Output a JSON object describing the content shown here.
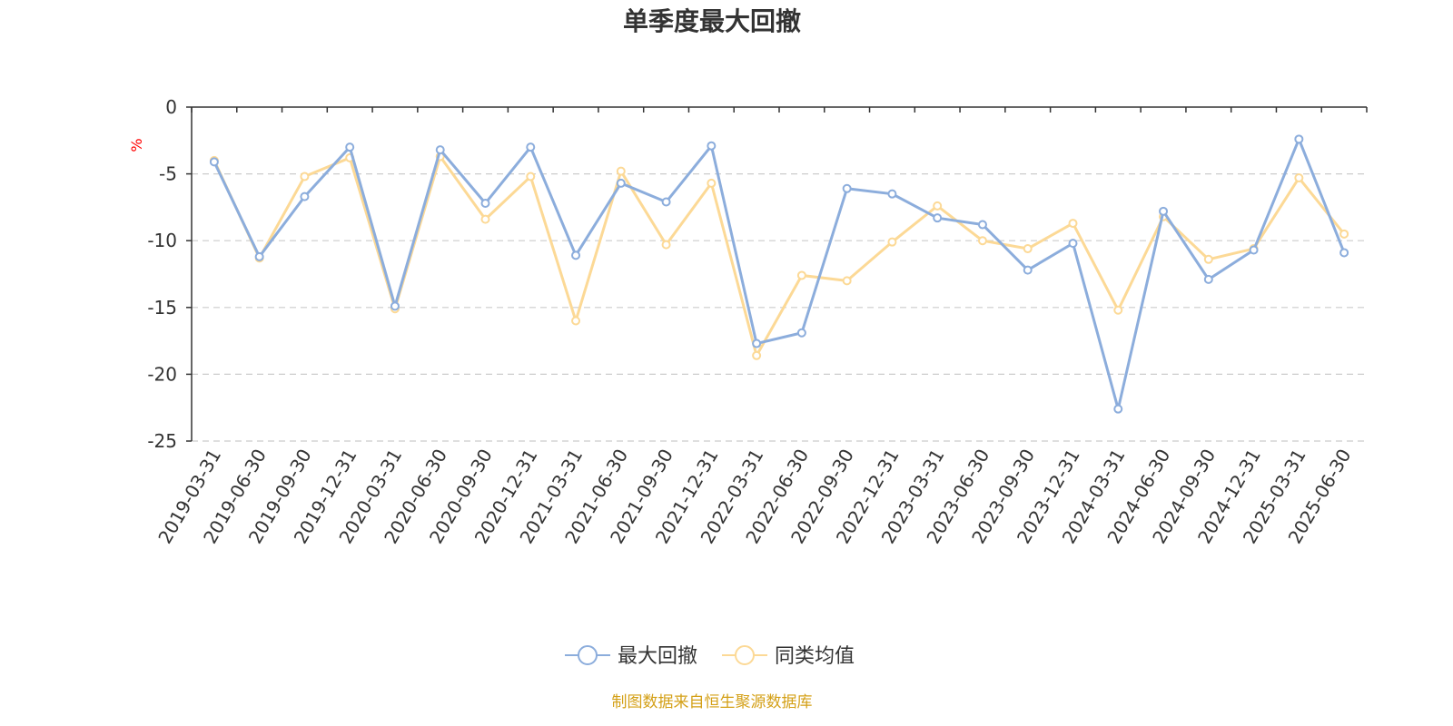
{
  "chart_data": {
    "type": "line",
    "title": "单季度最大回撤",
    "ylabel": "%",
    "ylim": [
      -25,
      0
    ],
    "yticks": [
      0,
      -5,
      -10,
      -15,
      -20,
      -25
    ],
    "grid": true,
    "legend_position": "bottom",
    "categories": [
      "2019-03-31",
      "2019-06-30",
      "2019-09-30",
      "2019-12-31",
      "2020-03-31",
      "2020-06-30",
      "2020-09-30",
      "2020-12-31",
      "2021-03-31",
      "2021-06-30",
      "2021-09-30",
      "2021-12-31",
      "2022-03-31",
      "2022-06-30",
      "2022-09-30",
      "2022-12-31",
      "2023-03-31",
      "2023-06-30",
      "2023-09-30",
      "2023-12-31",
      "2024-03-31",
      "2024-06-30",
      "2024-09-30",
      "2024-12-31",
      "2025-03-31",
      "2025-06-30"
    ],
    "series": [
      {
        "name": "最大回撤",
        "color": "#8caddc",
        "values": [
          -4.1,
          -11.2,
          -6.7,
          -3.0,
          -14.9,
          -3.2,
          -7.2,
          -3.0,
          -11.1,
          -5.7,
          -7.1,
          -2.9,
          -17.7,
          -16.9,
          -6.1,
          -6.5,
          -8.3,
          -8.8,
          -12.2,
          -10.2,
          -22.6,
          -7.8,
          -12.9,
          -10.7,
          -2.4,
          -10.9
        ]
      },
      {
        "name": "同类均值",
        "color": "#fcd996",
        "values": [
          -4.0,
          -11.3,
          -5.2,
          -3.8,
          -15.1,
          -3.7,
          -8.4,
          -5.2,
          -16.0,
          -4.8,
          -10.3,
          -5.7,
          -18.6,
          -12.6,
          -13.0,
          -10.1,
          -7.4,
          -10.0,
          -10.6,
          -8.7,
          -15.2,
          -8.2,
          -11.4,
          -10.6,
          -5.3,
          -9.5
        ]
      }
    ]
  },
  "source_text": "制图数据来自恒生聚源数据库",
  "colors": {
    "axis": "#333333",
    "grid": "#cccccc",
    "unit_label": "#ff0000",
    "source_text": "#d4a017"
  }
}
